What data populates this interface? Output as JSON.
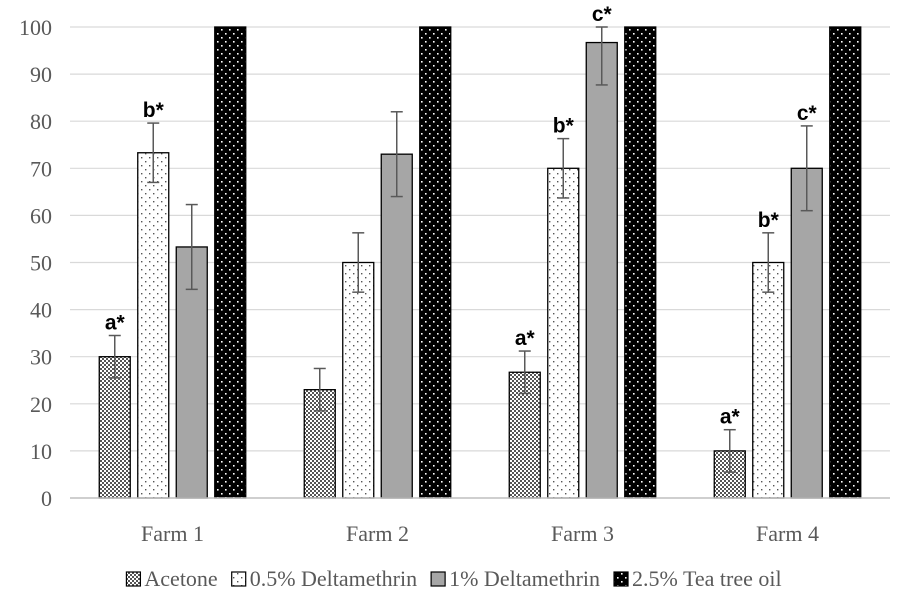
{
  "chart_data": {
    "type": "bar",
    "title": "",
    "xlabel": "",
    "ylabel": "",
    "categories": [
      "Farm 1",
      "Farm 2",
      "Farm 3",
      "Farm 4"
    ],
    "ylim": [
      0,
      100
    ],
    "yticks": [
      0,
      10,
      20,
      30,
      40,
      50,
      60,
      70,
      80,
      90,
      100
    ],
    "grid": true,
    "legend_position": "bottom",
    "series": [
      {
        "name": "Acetone",
        "pattern": "crosshatch",
        "color": "#bfbfbf",
        "values": [
          30,
          23,
          26.7,
          10
        ],
        "errors": [
          4.5,
          4.5,
          4.5,
          4.5
        ],
        "labels": [
          "a*",
          "",
          "a*",
          "a*"
        ]
      },
      {
        "name": "0.5% Deltamethrin",
        "pattern": "dots-on-white",
        "color": "#ffffff",
        "values": [
          73.3,
          50,
          70,
          50
        ],
        "errors": [
          6.3,
          6.3,
          6.3,
          6.3
        ],
        "labels": [
          "b*",
          "",
          "b*",
          "b*"
        ]
      },
      {
        "name": "1% Deltamethrin",
        "pattern": "solid",
        "color": "#a6a6a6",
        "values": [
          53.3,
          73,
          96.7,
          70
        ],
        "errors": [
          9,
          9,
          9,
          9
        ],
        "labels": [
          "",
          "",
          "c*",
          "c*"
        ]
      },
      {
        "name": "2.5% Tea tree oil",
        "pattern": "dots-on-black",
        "color": "#000000",
        "values": [
          100,
          100,
          100,
          100
        ],
        "errors": [
          0,
          0,
          0,
          0
        ],
        "labels": [
          "",
          "",
          "",
          ""
        ]
      }
    ]
  }
}
